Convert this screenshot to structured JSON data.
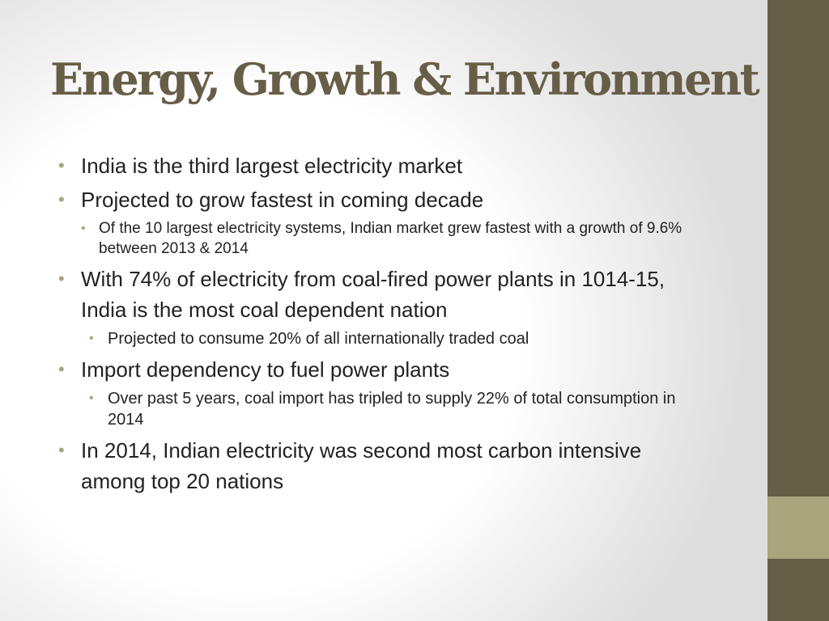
{
  "slide": {
    "title": "Energy, Growth & Environment",
    "bullet_glyph": "•",
    "colors": {
      "title": "#675e47",
      "side_bar": "#675e47",
      "side_accent": "#a9a57c",
      "bullet": "#a9a57c",
      "text": "#222222"
    },
    "bullets": [
      {
        "text": "India is the third largest electricity market"
      },
      {
        "text": "Projected to grow fastest in coming decade",
        "sub": "Of the 10 largest electricity systems, Indian market grew fastest with a growth of 9.6% between 2013 & 2014"
      },
      {
        "text": "With 74% of electricity from coal-fired power plants in 1014-15, India is the most coal dependent nation",
        "sub": "Projected to consume 20% of all internationally traded coal"
      },
      {
        "text": "Import dependency to fuel power plants",
        "sub": "Over past 5 years, coal import has tripled to supply 22% of total consumption in 2014"
      },
      {
        "text": "In 2014, Indian electricity was second most carbon intensive among top 20 nations"
      }
    ]
  }
}
